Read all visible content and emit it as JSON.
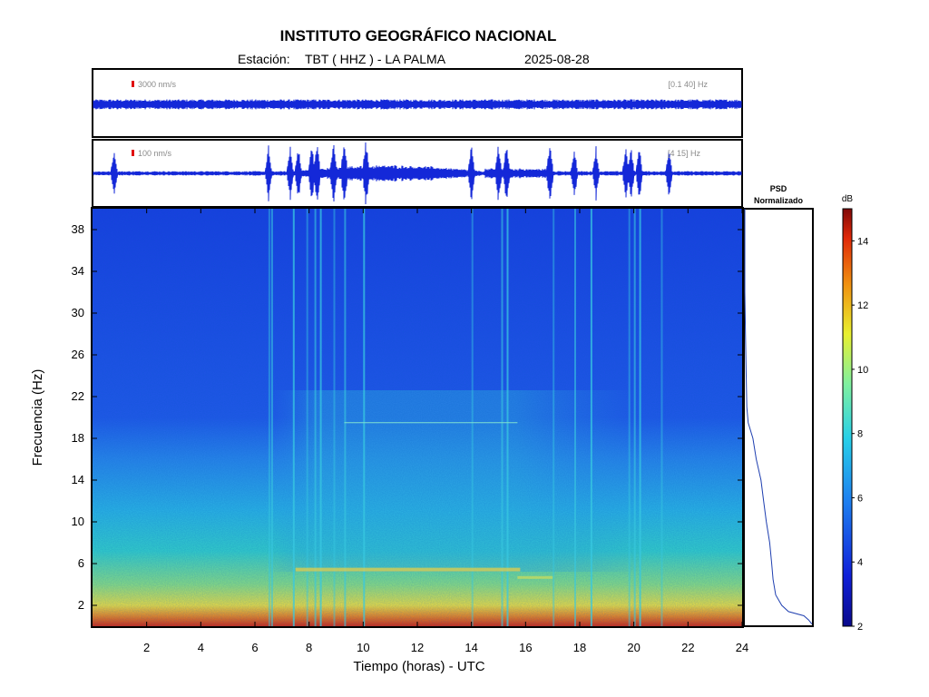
{
  "header": {
    "title": "INSTITUTO GEOGRÁFICO NACIONAL",
    "station_label": "Estación:",
    "station": "TBT ( HHZ ) - LA PALMA",
    "date": "2025-08-28"
  },
  "colors": {
    "frame": "#000000",
    "trace": "#1428d8",
    "scale_marker": "#e01010",
    "annotation": "#8a8a8a",
    "psd_line": "#1f3fb0"
  },
  "chart_data": [
    {
      "type": "line",
      "name": "trace-broadband",
      "scale_label": "3000 nm/s",
      "filter_label": "[0.1 40] Hz",
      "x_range": [
        0,
        24
      ],
      "description_level": "steady low-amplitude background noise band"
    },
    {
      "type": "line",
      "name": "trace-filtered",
      "scale_label": "100 nm/s",
      "filter_label": "[4 15] Hz",
      "x_range": [
        0,
        24
      ],
      "bursts_hours": [
        0.8,
        6.5,
        7.3,
        7.6,
        8.1,
        8.3,
        8.9,
        9.3,
        10.1,
        14.0,
        15.0,
        15.3,
        16.9,
        17.8,
        18.6,
        19.7,
        19.9,
        20.2,
        21.3
      ]
    },
    {
      "type": "heatmap",
      "xlabel": "Tiempo (horas) - UTC",
      "ylabel": "Frecuencia  (Hz)",
      "xlim": [
        0,
        24
      ],
      "ylim": [
        0,
        40
      ],
      "x_ticks": [
        2,
        4,
        6,
        8,
        10,
        12,
        14,
        16,
        18,
        20,
        22,
        24
      ],
      "y_ticks": [
        2,
        6,
        10,
        14,
        18,
        22,
        26,
        30,
        34,
        38
      ],
      "quiet_interval_hours": [
        6.5,
        20.5
      ],
      "vertical_streaks_hours": [
        6.5,
        6.6,
        7.4,
        7.9,
        8.2,
        8.4,
        8.9,
        9.3,
        10.0,
        14.0,
        15.1,
        15.3,
        17.0,
        17.8,
        18.4,
        19.8,
        20.0,
        20.2,
        21.0
      ]
    },
    {
      "type": "line",
      "title_line1": "PSD",
      "title_line2": "Normalizado",
      "ylim": [
        0,
        40
      ],
      "points": [
        [
          1.0,
          0.2
        ],
        [
          0.95,
          0.6
        ],
        [
          0.88,
          1.0
        ],
        [
          0.65,
          1.4
        ],
        [
          0.55,
          2.0
        ],
        [
          0.46,
          3.0
        ],
        [
          0.42,
          4.5
        ],
        [
          0.4,
          6.0
        ],
        [
          0.37,
          8.0
        ],
        [
          0.32,
          10.0
        ],
        [
          0.28,
          12.0
        ],
        [
          0.24,
          14.0
        ],
        [
          0.17,
          16.0
        ],
        [
          0.12,
          18.0
        ],
        [
          0.05,
          19.5
        ],
        [
          0.03,
          21.0
        ],
        [
          0.02,
          24.0
        ],
        [
          0.01,
          28.0
        ],
        [
          0.0,
          32.0
        ],
        [
          0.0,
          38.0
        ],
        [
          0.0,
          40.0
        ]
      ]
    },
    {
      "type": "heatmap",
      "name": "colorbar",
      "unit_label": "dB",
      "range": [
        2,
        15
      ],
      "ticks": [
        2,
        4,
        6,
        8,
        10,
        12,
        14
      ]
    }
  ]
}
